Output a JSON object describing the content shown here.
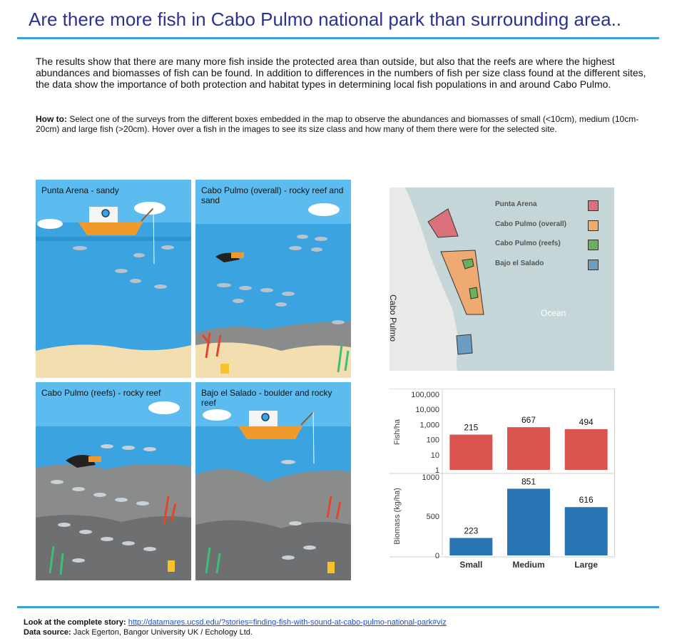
{
  "title": "Are there more fish in Cabo Pulmo national park than surrounding area..",
  "intro": "The results show that there are many more fish inside the protected area than outside, but also that the reefs are where the highest abundances and biomasses of fish can be found. In addition to differences in the numbers of fish per size class found at the different sites, the data show the importance of both protection and habitat types in determining local fish populations in and around Cabo Pulmo.",
  "howto": {
    "label": "How to:",
    "text": " Select one of the surveys from the different boxes embedded in the map to observe the abundances and biomasses of small (<10cm), medium (10cm-20cm) and large fish (>20cm). Hover over a fish in the images to see its size class and how many of them there were for the selected site."
  },
  "panels": [
    {
      "label": "Punta Arena - sandy"
    },
    {
      "label": "Cabo Pulmo (overall) - rocky reef and sand"
    },
    {
      "label": "Cabo Pulmo (reefs) - rocky reef"
    },
    {
      "label": "Bajo el Salado - boulder and rocky reef"
    }
  ],
  "map": {
    "legend": [
      {
        "label": "Punta Arena",
        "color": "#d9727a"
      },
      {
        "label": "Cabo Pulmo (overall)",
        "color": "#eeaa70"
      },
      {
        "label": "Cabo Pulmo (reefs)",
        "color": "#6bb05c"
      },
      {
        "label": "Bajo el Salado",
        "color": "#6e9dc3"
      }
    ],
    "land_label": "Cabo Pulmo",
    "ocean_label": "Ocean"
  },
  "chart_data": {
    "type": "bar",
    "categories": [
      "Small",
      "Medium",
      "Large"
    ],
    "panels": [
      {
        "ylabel": "Fish/ha",
        "scale": "log",
        "ylim": [
          1,
          100000
        ],
        "ticks": [
          "100,000",
          "10,000",
          "1,000",
          "100",
          "10",
          "1"
        ],
        "tick_values": [
          100000,
          10000,
          1000,
          100,
          10,
          1
        ],
        "values": [
          215,
          667,
          494
        ],
        "labels": [
          "215",
          "667",
          "494"
        ],
        "color": "#d9534f"
      },
      {
        "ylabel": "Biomass (kg/ha)",
        "scale": "linear",
        "ylim": [
          0,
          1000
        ],
        "ticks": [
          "1000",
          "500",
          "0"
        ],
        "tick_values": [
          1000,
          500,
          0
        ],
        "values": [
          223,
          851,
          616
        ],
        "labels": [
          "223",
          "851",
          "616"
        ],
        "color": "#2a76b5"
      }
    ]
  },
  "footer": {
    "story_label": "Look at the complete story:",
    "story_link": "http://datamares.ucsd.edu/?stories=finding-fish-with-sound-at-cabo-pulmo-national-park#viz",
    "source_label": "Data source:",
    "source_text": " Jack Egerton, Bangor University UK / Echology Ltd."
  }
}
